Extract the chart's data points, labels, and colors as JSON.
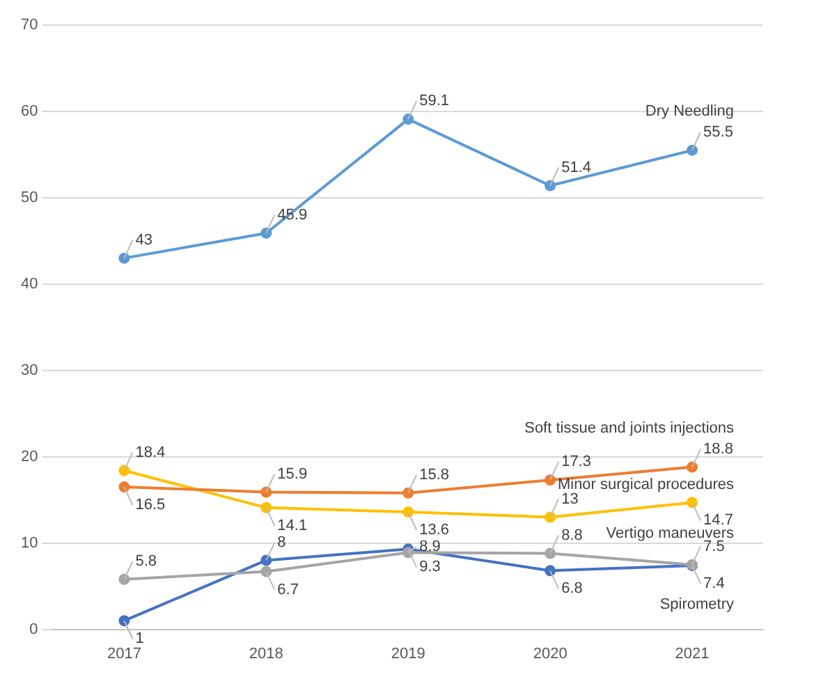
{
  "chart_data": {
    "type": "line",
    "categories": [
      "2017",
      "2018",
      "2019",
      "2020",
      "2021"
    ],
    "series": [
      {
        "name": "Dry Needling",
        "color": "#5b9bd5",
        "values": [
          43,
          45.9,
          59.1,
          51.4,
          55.5
        ]
      },
      {
        "name": "Soft tissue and joints injections",
        "color": "#ed7d31",
        "values": [
          16.5,
          15.9,
          15.8,
          17.3,
          18.8
        ]
      },
      {
        "name": "Minor surgical procedures",
        "color": "#ffc000",
        "values": [
          18.4,
          14.1,
          13.6,
          13,
          14.7
        ]
      },
      {
        "name": "Vertigo maneuvers",
        "color": "#a5a5a5",
        "values": [
          5.8,
          6.7,
          8.9,
          8.8,
          7.5
        ]
      },
      {
        "name": "Spirometry",
        "color": "#4472c4",
        "values": [
          1,
          8,
          9.3,
          6.8,
          7.4
        ]
      }
    ],
    "ylim": [
      0,
      70
    ],
    "yticks": [
      0,
      10,
      20,
      30,
      40,
      50,
      60,
      70
    ],
    "grid": "y",
    "legend": false,
    "marker": "circle",
    "data_labels": true
  }
}
